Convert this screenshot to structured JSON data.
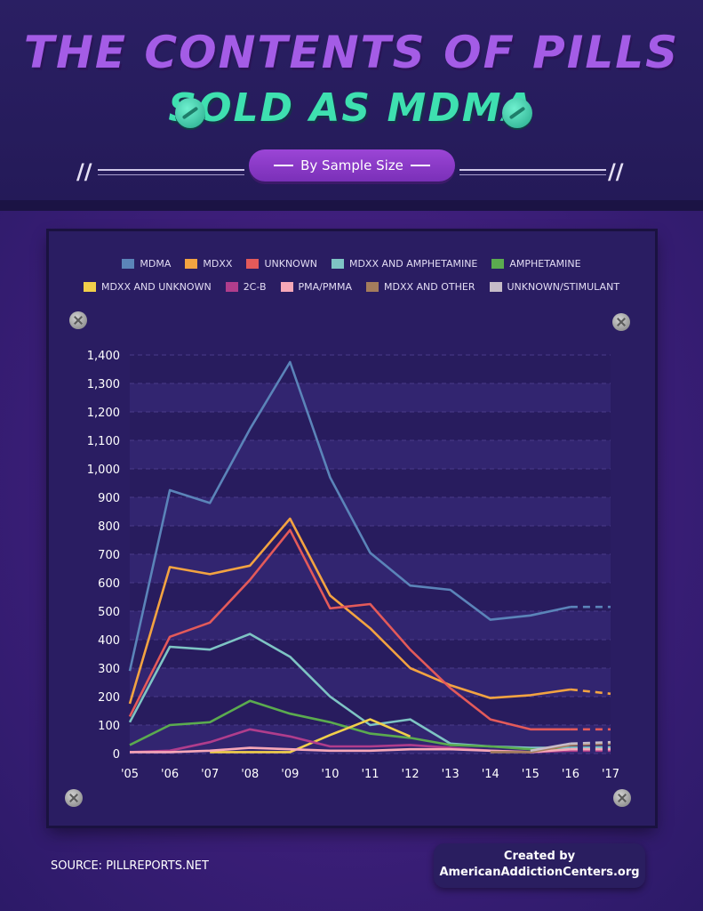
{
  "header": {
    "title_line1": "THE CONTENTS OF PILLS",
    "title_line2": "SOLD AS MDMA",
    "subtitle": "By Sample Size"
  },
  "footer": {
    "source": "SOURCE: PILLREPORTS.NET",
    "credit_line1": "Created by",
    "credit_line2": "AmericanAddictionCenters.org"
  },
  "icons": [
    "pill-icon",
    "screw-icon"
  ],
  "colors": {
    "title": "#a45ce6",
    "subtitle_title": "#3ee0b0",
    "subtitle_pill": "#8a3bc8",
    "panel": "#2a1d62"
  },
  "chart_data": {
    "type": "line",
    "title": "",
    "xlabel": "",
    "ylabel": "",
    "categories": [
      "'05",
      "'06",
      "'07",
      "'08",
      "'09",
      "'10",
      "'11",
      "'12",
      "'13",
      "'14",
      "'15",
      "'16",
      "'17"
    ],
    "ylim": [
      0,
      1400
    ],
    "yticks": [
      0,
      100,
      200,
      300,
      400,
      500,
      600,
      700,
      800,
      900,
      1000,
      1100,
      1200,
      1300,
      1400
    ],
    "ytick_labels": [
      "0",
      "100",
      "200",
      "300",
      "400",
      "500",
      "600",
      "700",
      "800",
      "900",
      "1,000",
      "1,100",
      "1,200",
      "1,300",
      "1,400"
    ],
    "grid": true,
    "legend_position": "top",
    "projected_segment": "'16 to '17 drawn dashed",
    "series": [
      {
        "name": "MDMA",
        "color": "#5b84b9",
        "values": [
          290,
          925,
          880,
          1140,
          1375,
          970,
          705,
          590,
          575,
          470,
          485,
          515,
          515
        ]
      },
      {
        "name": "MDXX",
        "color": "#f3a341",
        "values": [
          175,
          655,
          630,
          660,
          825,
          555,
          440,
          300,
          240,
          195,
          205,
          225,
          210
        ]
      },
      {
        "name": "UNKNOWN",
        "color": "#e35a5a",
        "values": [
          130,
          410,
          460,
          610,
          785,
          510,
          525,
          365,
          230,
          120,
          85,
          85,
          85
        ]
      },
      {
        "name": "MDXX AND AMPHETAMINE",
        "color": "#7ec4c4",
        "values": [
          110,
          375,
          365,
          420,
          340,
          200,
          100,
          120,
          35,
          25,
          20,
          20,
          22
        ]
      },
      {
        "name": "AMPHETAMINE",
        "color": "#5bab4f",
        "values": [
          30,
          100,
          110,
          185,
          140,
          110,
          70,
          55,
          30,
          25,
          15,
          12,
          12
        ]
      },
      {
        "name": "MDXX AND UNKNOWN",
        "color": "#f2cf4a",
        "values": [
          null,
          null,
          5,
          5,
          5,
          65,
          120,
          60,
          null,
          null,
          null,
          null,
          null
        ]
      },
      {
        "name": "2C-B",
        "color": "#b03d8c",
        "values": [
          5,
          10,
          40,
          85,
          60,
          25,
          25,
          30,
          20,
          10,
          5,
          10,
          10
        ]
      },
      {
        "name": "PMA/PMMA",
        "color": "#f7a8b8",
        "values": [
          5,
          5,
          10,
          20,
          15,
          10,
          10,
          15,
          15,
          10,
          5,
          15,
          15
        ]
      },
      {
        "name": "MDXX AND OTHER",
        "color": "#a47c5c",
        "values": [
          null,
          null,
          null,
          null,
          null,
          null,
          null,
          null,
          null,
          5,
          5,
          30,
          35
        ]
      },
      {
        "name": "UNKNOWN/STIMULANT",
        "color": "#c6bcc8",
        "values": [
          null,
          null,
          null,
          null,
          null,
          null,
          null,
          null,
          null,
          null,
          10,
          35,
          40
        ]
      }
    ]
  }
}
